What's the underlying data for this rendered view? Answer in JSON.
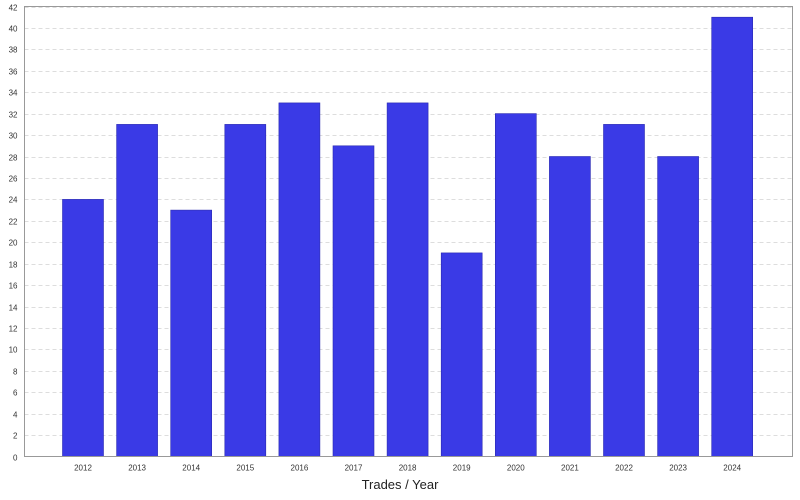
{
  "chart_data": {
    "type": "bar",
    "title": "",
    "xlabel": "Trades / Year",
    "ylabel": "",
    "categories": [
      "2012",
      "2013",
      "2014",
      "2015",
      "2016",
      "2017",
      "2018",
      "2019",
      "2020",
      "2021",
      "2022",
      "2023",
      "2024"
    ],
    "values": [
      24,
      31,
      23,
      31,
      33,
      29,
      33,
      19,
      32,
      28,
      31,
      28,
      41
    ],
    "ylim": [
      0,
      42
    ],
    "yticks": [
      0,
      2,
      4,
      6,
      8,
      10,
      12,
      14,
      16,
      18,
      20,
      22,
      24,
      26,
      28,
      30,
      32,
      34,
      36,
      38,
      40,
      42
    ],
    "grid": true,
    "bar_color": "#3a3ae6",
    "grid_color": "#dddddd"
  }
}
